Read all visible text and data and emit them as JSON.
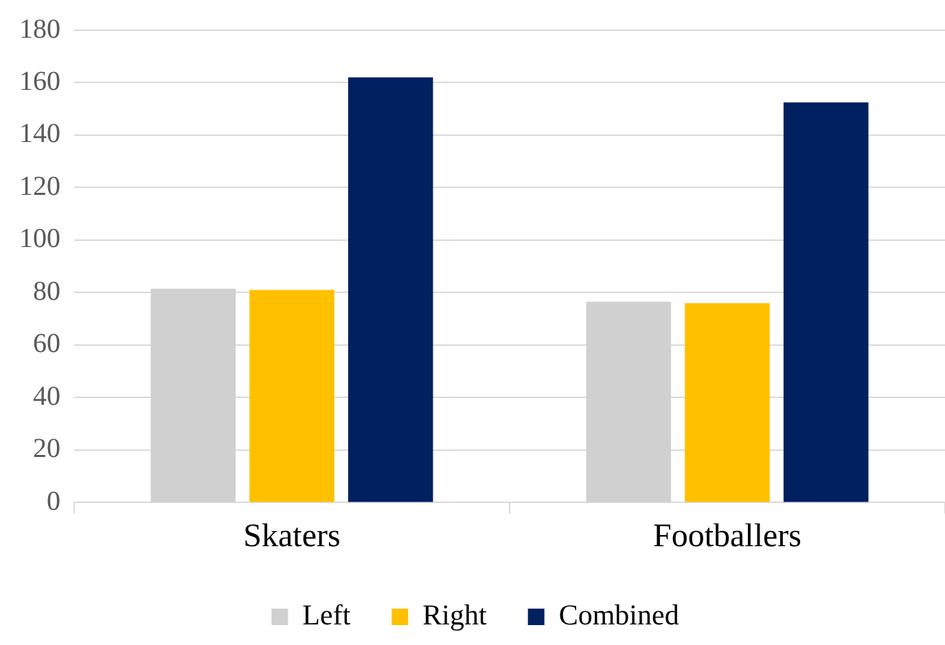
{
  "chart_data": {
    "type": "bar",
    "categories": [
      "Skaters",
      "Footballers"
    ],
    "series": [
      {
        "name": "Left",
        "color": "#d0d0d0",
        "values": [
          81.5,
          76.5
        ]
      },
      {
        "name": "Right",
        "color": "#ffc000",
        "values": [
          81,
          76
        ]
      },
      {
        "name": "Combined",
        "color": "#002060",
        "values": [
          162,
          152.5
        ]
      }
    ],
    "ylim": [
      0,
      180
    ],
    "yticks": [
      0,
      20,
      40,
      60,
      80,
      100,
      120,
      140,
      160,
      180
    ],
    "grid": "y",
    "legend": "bottom"
  }
}
